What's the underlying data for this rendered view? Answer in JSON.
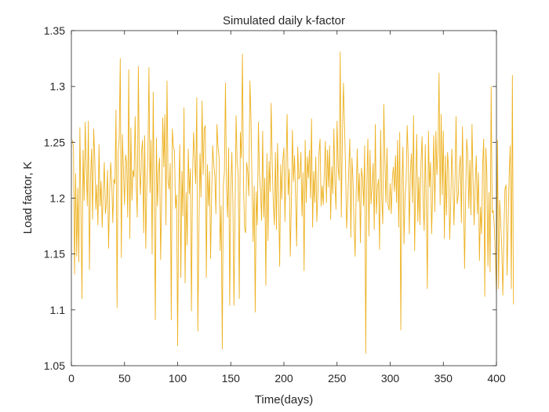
{
  "chart_data": {
    "type": "line",
    "title": "Simulated daily k-factor",
    "xlabel": "Time(days)",
    "ylabel": "Load factor, K",
    "xlim": [
      0,
      400
    ],
    "ylim": [
      1.05,
      1.35
    ],
    "xticks": [
      0,
      50,
      100,
      150,
      200,
      250,
      300,
      350,
      400
    ],
    "yticks": [
      1.05,
      1.1,
      1.15,
      1.2,
      1.25,
      1.3,
      1.35
    ],
    "xtick_labels": [
      "0",
      "50",
      "100",
      "150",
      "200",
      "250",
      "300",
      "350",
      "400"
    ],
    "ytick_labels": [
      "1.05",
      "1.1",
      "1.15",
      "1.2",
      "1.25",
      "1.3",
      "1.35"
    ],
    "grid": false,
    "line_color": "#EDB120",
    "series": [
      {
        "x_start": 1,
        "x_step": 1,
        "values": [
          1.252,
          1.245,
          1.132,
          1.222,
          1.148,
          1.209,
          1.143,
          1.263,
          1.191,
          1.11,
          1.243,
          1.198,
          1.268,
          1.227,
          1.193,
          1.269,
          1.136,
          1.216,
          1.244,
          1.181,
          1.262,
          1.237,
          1.19,
          1.212,
          1.176,
          1.248,
          1.193,
          1.215,
          1.174,
          1.206,
          1.232,
          1.186,
          1.196,
          1.225,
          1.155,
          1.204,
          1.232,
          1.214,
          1.178,
          1.217,
          1.213,
          1.279,
          1.102,
          1.241,
          1.253,
          1.325,
          1.147,
          1.257,
          1.225,
          1.194,
          1.239,
          1.232,
          1.183,
          1.315,
          1.164,
          1.263,
          1.198,
          1.225,
          1.219,
          1.273,
          1.213,
          1.183,
          1.318,
          1.227,
          1.203,
          1.241,
          1.252,
          1.169,
          1.256,
          1.155,
          1.211,
          1.236,
          1.317,
          1.205,
          1.252,
          1.15,
          1.295,
          1.196,
          1.091,
          1.254,
          1.193,
          1.224,
          1.236,
          1.145,
          1.203,
          1.272,
          1.228,
          1.275,
          1.176,
          1.305,
          1.215,
          1.208,
          1.231,
          1.091,
          1.262,
          1.246,
          1.242,
          1.191,
          1.203,
          1.068,
          1.202,
          1.248,
          1.129,
          1.224,
          1.184,
          1.281,
          1.124,
          1.205,
          1.158,
          1.244,
          1.204,
          1.226,
          1.099,
          1.216,
          1.259,
          1.234,
          1.213,
          1.29,
          1.081,
          1.168,
          1.24,
          1.201,
          1.287,
          1.221,
          1.262,
          1.265,
          1.129,
          1.23,
          1.193,
          1.224,
          1.146,
          1.204,
          1.247,
          1.23,
          1.22,
          1.186,
          1.266,
          1.246,
          1.237,
          1.153,
          1.193,
          1.065,
          1.212,
          1.223,
          1.303,
          1.209,
          1.183,
          1.245,
          1.104,
          1.209,
          1.241,
          1.196,
          1.104,
          1.186,
          1.274,
          1.232,
          1.221,
          1.11,
          1.259,
          1.236,
          1.329,
          1.211,
          1.173,
          1.169,
          1.232,
          1.223,
          1.202,
          1.305,
          1.272,
          1.21,
          1.161,
          1.211,
          1.098,
          1.206,
          1.176,
          1.268,
          1.222,
          1.206,
          1.18,
          1.26,
          1.183,
          1.218,
          1.122,
          1.24,
          1.162,
          1.233,
          1.206,
          1.285,
          1.232,
          1.196,
          1.176,
          1.241,
          1.172,
          1.249,
          1.202,
          1.139,
          1.23,
          1.199,
          1.234,
          1.245,
          1.179,
          1.229,
          1.275,
          1.203,
          1.226,
          1.148,
          1.194,
          1.261,
          1.215,
          1.238,
          1.201,
          1.157,
          1.246,
          1.217,
          1.219,
          1.241,
          1.184,
          1.223,
          1.135,
          1.252,
          1.196,
          1.237,
          1.218,
          1.243,
          1.2,
          1.271,
          1.174,
          1.224,
          1.196,
          1.237,
          1.179,
          1.206,
          1.24,
          1.253,
          1.193,
          1.211,
          1.194,
          1.223,
          1.251,
          1.196,
          1.243,
          1.21,
          1.247,
          1.181,
          1.228,
          1.204,
          1.262,
          1.214,
          1.19,
          1.269,
          1.228,
          1.216,
          1.331,
          1.183,
          1.252,
          1.303,
          1.266,
          1.227,
          1.173,
          1.196,
          1.225,
          1.253,
          1.165,
          1.236,
          1.216,
          1.176,
          1.148,
          1.204,
          1.244,
          1.197,
          1.222,
          1.16,
          1.227,
          1.218,
          1.193,
          1.247,
          1.061,
          1.212,
          1.253,
          1.166,
          1.243,
          1.195,
          1.211,
          1.231,
          1.172,
          1.266,
          1.186,
          1.209,
          1.217,
          1.154,
          1.261,
          1.202,
          1.177,
          1.284,
          1.233,
          1.196,
          1.245,
          1.194,
          1.189,
          1.213,
          1.186,
          1.217,
          1.228,
          1.206,
          1.238,
          1.196,
          1.252,
          1.174,
          1.259,
          1.082,
          1.212,
          1.246,
          1.159,
          1.202,
          1.215,
          1.265,
          1.236,
          1.168,
          1.223,
          1.24,
          1.196,
          1.274,
          1.153,
          1.212,
          1.257,
          1.179,
          1.219,
          1.176,
          1.232,
          1.255,
          1.197,
          1.171,
          1.248,
          1.193,
          1.119,
          1.26,
          1.21,
          1.232,
          1.168,
          1.208,
          1.256,
          1.188,
          1.26,
          1.221,
          1.243,
          1.312,
          1.194,
          1.275,
          1.203,
          1.26,
          1.164,
          1.238,
          1.185,
          1.241,
          1.226,
          1.163,
          1.197,
          1.244,
          1.216,
          1.176,
          1.215,
          1.273,
          1.195,
          1.202,
          1.226,
          1.238,
          1.178,
          1.264,
          1.205,
          1.137,
          1.2,
          1.253,
          1.239,
          1.191,
          1.234,
          1.185,
          1.266,
          1.215,
          1.176,
          1.213,
          1.238,
          1.186,
          1.223,
          1.144,
          1.192,
          1.168,
          1.23,
          1.253,
          1.112,
          1.245,
          1.221,
          1.139,
          1.205,
          1.134,
          1.3,
          1.187,
          1.189,
          1.175,
          1.147,
          1.116,
          1.252,
          1.119,
          1.198,
          1.178,
          1.156,
          1.113,
          1.168,
          1.208,
          1.212,
          1.131,
          1.18,
          1.223,
          1.247,
          1.119,
          1.31,
          1.105
        ]
      }
    ]
  }
}
